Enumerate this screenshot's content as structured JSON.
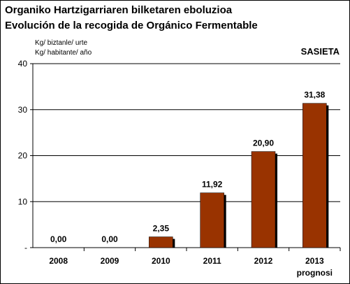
{
  "titles": {
    "line1": "Organiko Hartzigarriaren bilketaren eboluzioa",
    "line2": "Evolución de la recogida de Orgánico Fermentable"
  },
  "units": {
    "line1": "Kg/ biztanle/ urte",
    "line2": "Kg/ habitante/ año"
  },
  "region": "SASIETA",
  "chart_data": {
    "type": "bar",
    "categories": [
      "2008",
      "2009",
      "2010",
      "2011",
      "2012",
      "2013"
    ],
    "category_sublabels": [
      "",
      "",
      "",
      "",
      "",
      "prognosi"
    ],
    "values": [
      0.0,
      0.0,
      2.35,
      11.92,
      20.9,
      31.38
    ],
    "data_labels": [
      "0,00",
      "0,00",
      "2,35",
      "11,92",
      "20,90",
      "31,38"
    ],
    "ylim": [
      0,
      40
    ],
    "yticks": [
      0,
      10,
      20,
      30,
      40
    ],
    "ytick_labels": [
      "-",
      "10",
      "20",
      "30",
      "40"
    ],
    "grid": true,
    "bar_color": "#993300",
    "bar_shadow_color": "#000000"
  }
}
